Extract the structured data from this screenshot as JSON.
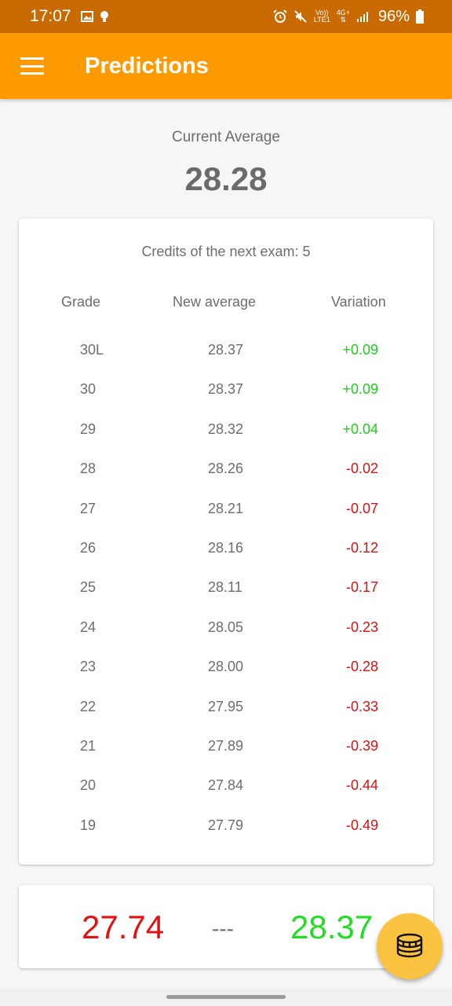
{
  "status_bar": {
    "time": "17:07",
    "network_top": "Vo))",
    "network_bottom": "LTE1",
    "network_4g": "4G+",
    "battery": "96%"
  },
  "app_bar": {
    "title": "Predictions"
  },
  "current": {
    "label": "Current Average",
    "value": "28.28"
  },
  "table": {
    "credits_label": "Credits of the next exam: 5",
    "headers": {
      "grade": "Grade",
      "new_average": "New average",
      "variation": "Variation"
    },
    "rows": [
      {
        "grade": "30L",
        "avg": "28.37",
        "variation": "+0.09",
        "positive": true
      },
      {
        "grade": "30",
        "avg": "28.37",
        "variation": "+0.09",
        "positive": true
      },
      {
        "grade": "29",
        "avg": "28.32",
        "variation": "+0.04",
        "positive": true
      },
      {
        "grade": "28",
        "avg": "28.26",
        "variation": "-0.02",
        "positive": false
      },
      {
        "grade": "27",
        "avg": "28.21",
        "variation": "-0.07",
        "positive": false
      },
      {
        "grade": "26",
        "avg": "28.16",
        "variation": "-0.12",
        "positive": false
      },
      {
        "grade": "25",
        "avg": "28.11",
        "variation": "-0.17",
        "positive": false
      },
      {
        "grade": "24",
        "avg": "28.05",
        "variation": "-0.23",
        "positive": false
      },
      {
        "grade": "23",
        "avg": "28.00",
        "variation": "-0.28",
        "positive": false
      },
      {
        "grade": "22",
        "avg": "27.95",
        "variation": "-0.33",
        "positive": false
      },
      {
        "grade": "21",
        "avg": "27.89",
        "variation": "-0.39",
        "positive": false
      },
      {
        "grade": "20",
        "avg": "27.84",
        "variation": "-0.44",
        "positive": false
      },
      {
        "grade": "19",
        "avg": "27.79",
        "variation": "-0.49",
        "positive": false
      }
    ]
  },
  "range": {
    "min": "27.74",
    "separator": "---",
    "max": "28.37"
  },
  "colors": {
    "app_bar": "#ff9a00",
    "status_bar": "#c96a00",
    "positive": "#1ccc1c",
    "negative": "#dd1111",
    "fab": "#fcc340"
  },
  "icons": {
    "menu": "hamburger-icon",
    "fab": "coins-stack-icon"
  }
}
